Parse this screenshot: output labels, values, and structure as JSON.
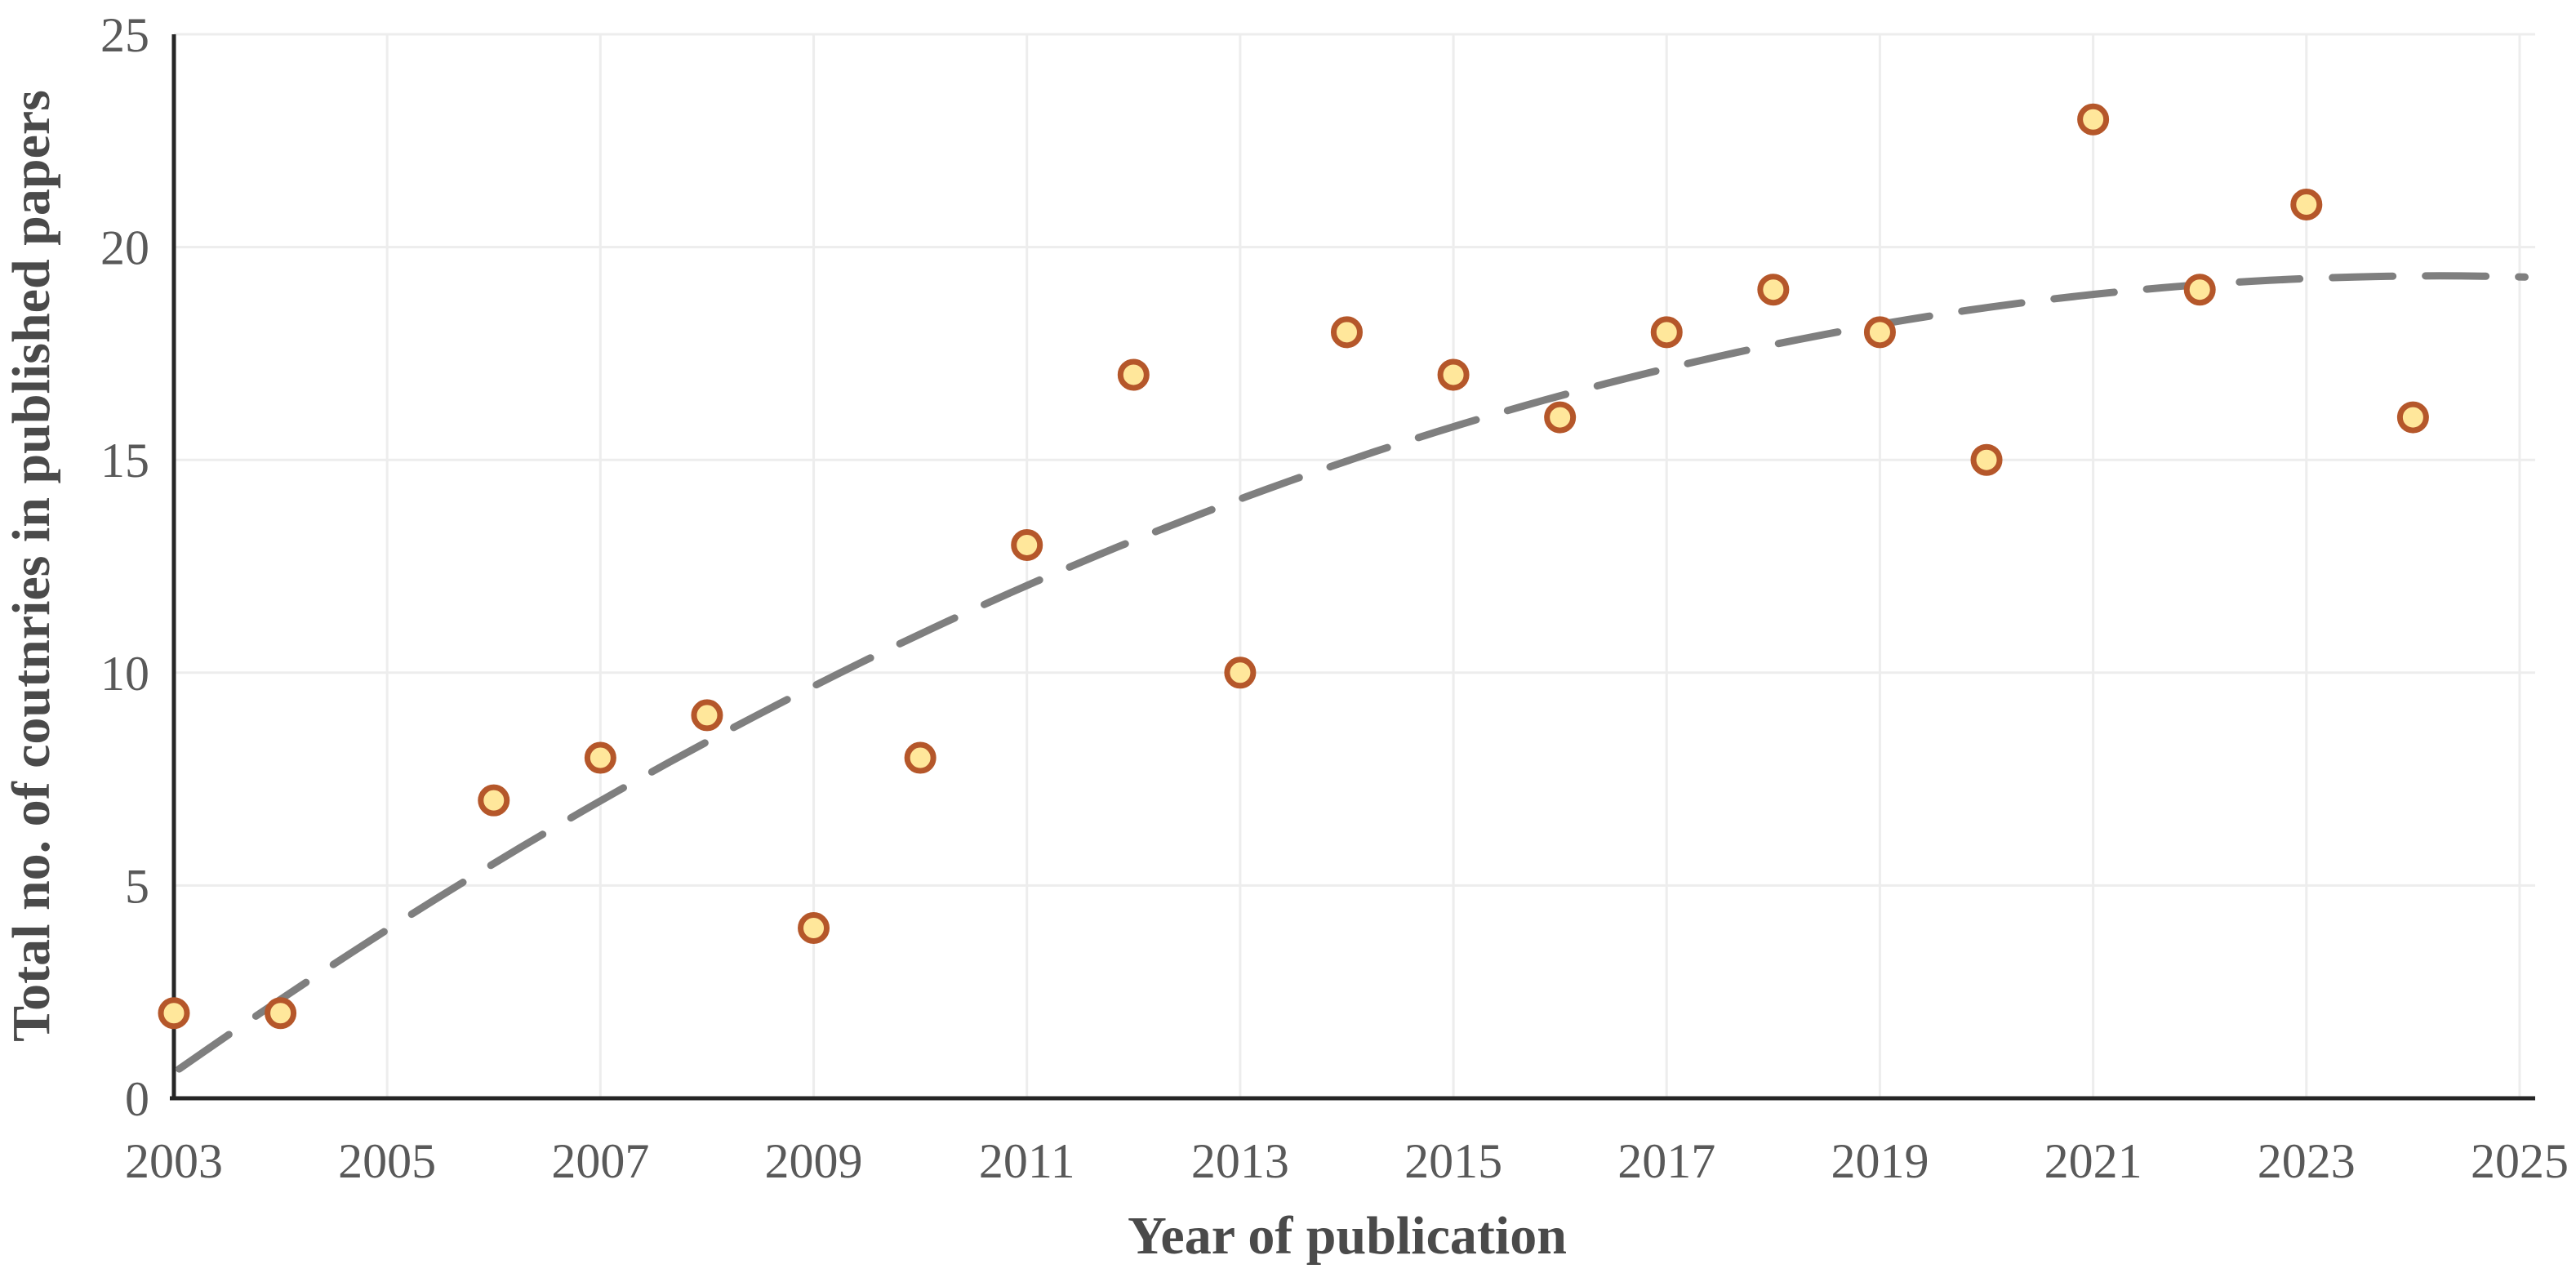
{
  "chart_data": {
    "type": "scatter",
    "title": "",
    "xlabel": "Year of publication",
    "ylabel": "Total no. of coutnries in published papers",
    "x_ticks": [
      "2003",
      "2005",
      "2007",
      "2009",
      "2011",
      "2013",
      "2015",
      "2017",
      "2019",
      "2021",
      "2023",
      "2025"
    ],
    "y_ticks": [
      "0",
      "5",
      "10",
      "15",
      "20",
      "25"
    ],
    "xlim": [
      2003,
      2025
    ],
    "ylim": [
      0,
      25
    ],
    "grid": true,
    "legend": false,
    "points": [
      {
        "year": 2003,
        "value": 2
      },
      {
        "year": 2004,
        "value": 2
      },
      {
        "year": 2006,
        "value": 7
      },
      {
        "year": 2007,
        "value": 8
      },
      {
        "year": 2008,
        "value": 9
      },
      {
        "year": 2009,
        "value": 4
      },
      {
        "year": 2010,
        "value": 8
      },
      {
        "year": 2011,
        "value": 13
      },
      {
        "year": 2012,
        "value": 17
      },
      {
        "year": 2013,
        "value": 10
      },
      {
        "year": 2014,
        "value": 18
      },
      {
        "year": 2015,
        "value": 17
      },
      {
        "year": 2016,
        "value": 16
      },
      {
        "year": 2017,
        "value": 18
      },
      {
        "year": 2018,
        "value": 19
      },
      {
        "year": 2019,
        "value": 18
      },
      {
        "year": 2020,
        "value": 15
      },
      {
        "year": 2021,
        "value": 23
      },
      {
        "year": 2022,
        "value": 19
      },
      {
        "year": 2023,
        "value": 21
      },
      {
        "year": 2024,
        "value": 16
      }
    ],
    "trendline": {
      "style": "dashed",
      "model": "quadratic",
      "coefficients": {
        "c0": 0.6,
        "c1": 1.763,
        "c2": -0.0415
      },
      "t_is": "year - 2003",
      "t_range": [
        0.05,
        22.15
      ],
      "approx_values": {
        "2003": 0.7,
        "2007": 7.0,
        "2011": 12.1,
        "2015": 15.8,
        "2019": 18.2,
        "2023": 19.2,
        "2025": 19.3
      }
    },
    "colors": {
      "background": "#FFFFFF",
      "marker_fill": "#FFE79B",
      "marker_stroke": "#B5572A",
      "trend": "#7F7F7F",
      "grid": "#EDEDED",
      "axis": "#262626",
      "tick_text": "#595959",
      "title_text": "#4A4A4A"
    }
  }
}
